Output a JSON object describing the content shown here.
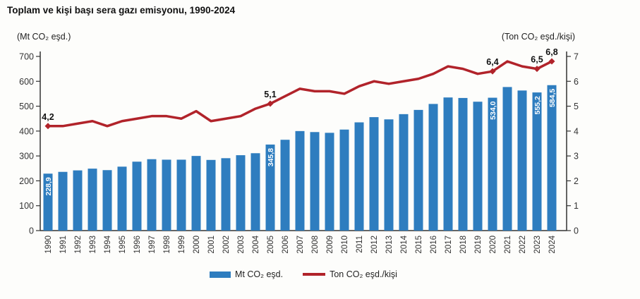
{
  "header": {
    "title": "Toplam ve kişi başı sera gazı emisyonu, 1990-2024"
  },
  "chart_data": {
    "type": "combo-bar-line",
    "categories": [
      "1990",
      "1991",
      "1992",
      "1993",
      "1994",
      "1995",
      "1996",
      "1997",
      "1998",
      "1999",
      "2000",
      "2001",
      "2002",
      "2003",
      "2004",
      "2005",
      "2006",
      "2007",
      "2008",
      "2009",
      "2010",
      "2011",
      "2012",
      "2013",
      "2014",
      "2015",
      "2016",
      "2017",
      "2018",
      "2019",
      "2020",
      "2021",
      "2022",
      "2023",
      "2024"
    ],
    "series": [
      {
        "name": "Mt CO₂ eşd.",
        "type": "bar",
        "axis": "left",
        "values": [
          228.9,
          236,
          242,
          249,
          243,
          257,
          277,
          287,
          285,
          285,
          300,
          284,
          291,
          303,
          311,
          345.8,
          365,
          400,
          396,
          393,
          406,
          435,
          456,
          447,
          468,
          485,
          509,
          535,
          533,
          518,
          534.0,
          577,
          563,
          555.2,
          584.5
        ]
      },
      {
        "name": "Ton CO₂ eşd./kişi",
        "type": "line",
        "axis": "right",
        "values": [
          4.2,
          4.2,
          4.3,
          4.4,
          4.2,
          4.4,
          4.5,
          4.6,
          4.6,
          4.5,
          4.8,
          4.4,
          4.5,
          4.6,
          4.9,
          5.1,
          5.4,
          5.7,
          5.6,
          5.6,
          5.5,
          5.8,
          6.0,
          5.9,
          6.0,
          6.1,
          6.3,
          6.6,
          6.5,
          6.3,
          6.4,
          6.8,
          6.6,
          6.5,
          6.8
        ]
      }
    ],
    "left_axis": {
      "unit_label": "(Mt CO₂ eşd.)",
      "min": 0,
      "max": 700,
      "tick_step": 100,
      "ticks": [
        0,
        100,
        200,
        300,
        400,
        500,
        600,
        700
      ]
    },
    "right_axis": {
      "unit_label": "(Ton CO₂ eşd./kişi)",
      "min": 0,
      "max": 7,
      "tick_step": 1,
      "ticks": [
        0,
        1,
        2,
        3,
        4,
        5,
        6,
        7
      ]
    },
    "bar_value_labels": [
      {
        "year": "1990",
        "text": "228,9"
      },
      {
        "year": "2005",
        "text": "345,8"
      },
      {
        "year": "2020",
        "text": "534,0"
      },
      {
        "year": "2023",
        "text": "555,2"
      },
      {
        "year": "2024",
        "text": "584,5"
      }
    ],
    "line_value_labels": [
      {
        "year": "1990",
        "text": "4,2"
      },
      {
        "year": "2005",
        "text": "5,1"
      },
      {
        "year": "2020",
        "text": "6,4"
      },
      {
        "year": "2023",
        "text": "6,5"
      },
      {
        "year": "2024",
        "text": "6,8"
      }
    ],
    "legend": [
      {
        "label": "Mt CO₂ eşd.",
        "type": "bar"
      },
      {
        "label": "Ton CO₂ eşd./kişi",
        "type": "line"
      }
    ],
    "colors": {
      "bar": "#2e7dbf",
      "line": "#b1232a",
      "axis": "#333333",
      "tick_text": "#333333",
      "bar_label_text": "#ffffff",
      "annotation_text": "#111111"
    }
  }
}
